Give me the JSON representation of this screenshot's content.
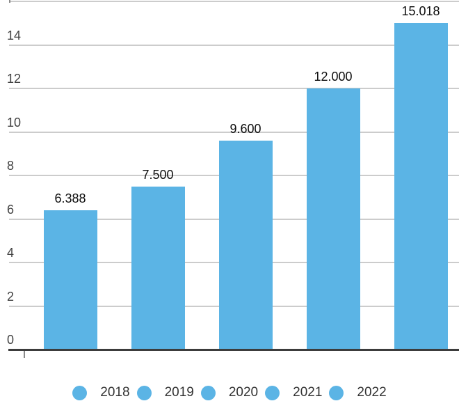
{
  "chart_data": {
    "type": "bar",
    "categories": [
      "2018",
      "2019",
      "2020",
      "2021",
      "2022"
    ],
    "values": [
      6.388,
      7.5,
      9.6,
      12.0,
      15.018
    ],
    "value_labels": [
      "6.388",
      "7.500",
      "9.600",
      "12.000",
      "15.018"
    ],
    "title": "",
    "xlabel": "",
    "ylabel": "",
    "ylim": [
      0,
      16
    ],
    "ytick_values": [
      0,
      2,
      4,
      6,
      8,
      10,
      12,
      14
    ],
    "ytick_labels": [
      "0",
      "2",
      "4",
      "6",
      "8",
      "10",
      "12",
      "14"
    ],
    "gridline_values": [
      2,
      4,
      6,
      8,
      10,
      12,
      14,
      16
    ],
    "grid": true,
    "legend_position": "bottom",
    "legend_entries": [
      "2018",
      "2019",
      "2020",
      "2021",
      "2022"
    ]
  },
  "colors": {
    "bar": "#5bb4e5",
    "gridline": "#cccccc",
    "axis_line": "#3c3c3c",
    "axis_label": "#424242",
    "data_label": "#0d0d0d",
    "legend_text": "#333333",
    "background": "#ffffff"
  }
}
